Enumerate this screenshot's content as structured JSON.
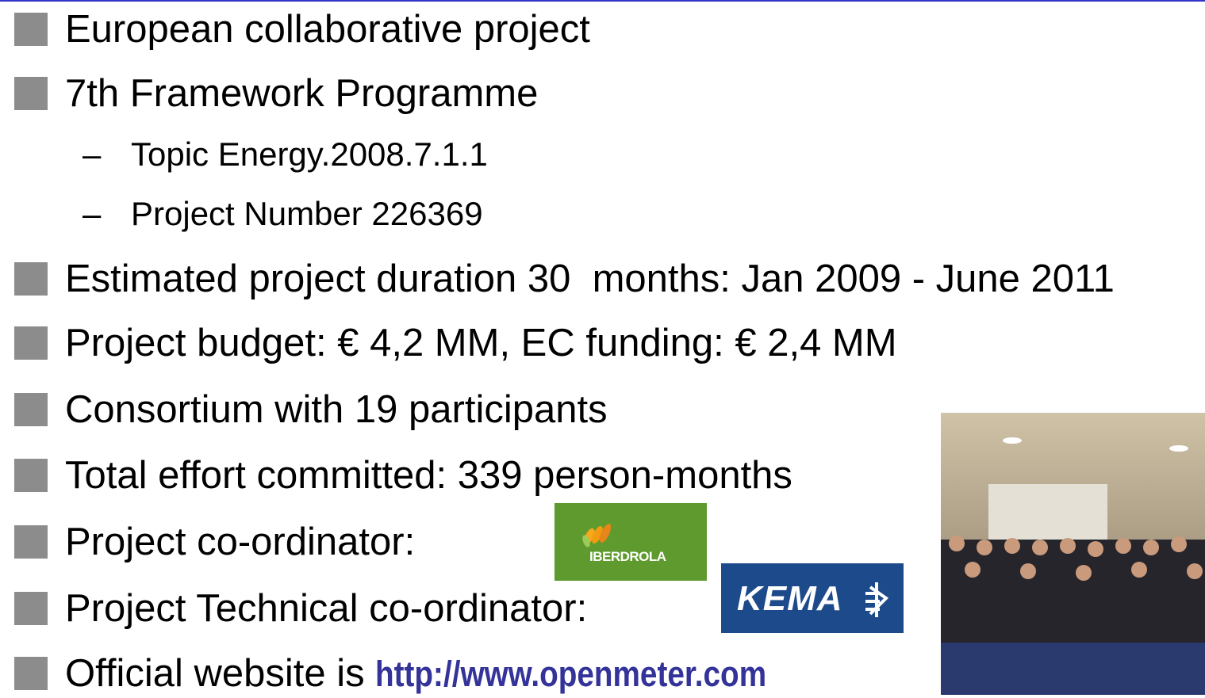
{
  "items": [
    {
      "text": "European collaborative project"
    },
    {
      "text": "7th Framework Programme",
      "subitems": [
        "Topic Energy.2008.7.1.1",
        "Project Number 226369"
      ]
    },
    {
      "text": "Estimated project duration 30  months: Jan 2009 - June 2011"
    },
    {
      "text": "Project budget: € 4,2 MM, EC funding: € 2,4 MM"
    },
    {
      "text": "Consortium with 19 participants"
    },
    {
      "text": "Total effort committed: 339 person-months"
    },
    {
      "text": "Project co-ordinator:"
    },
    {
      "text": "Project Technical co-ordinator:"
    },
    {
      "text": "Official website is ",
      "link": "http://www.openmeter.com"
    }
  ],
  "logos": {
    "coordinator": "IBERDROLA",
    "technical": "KEMA"
  }
}
